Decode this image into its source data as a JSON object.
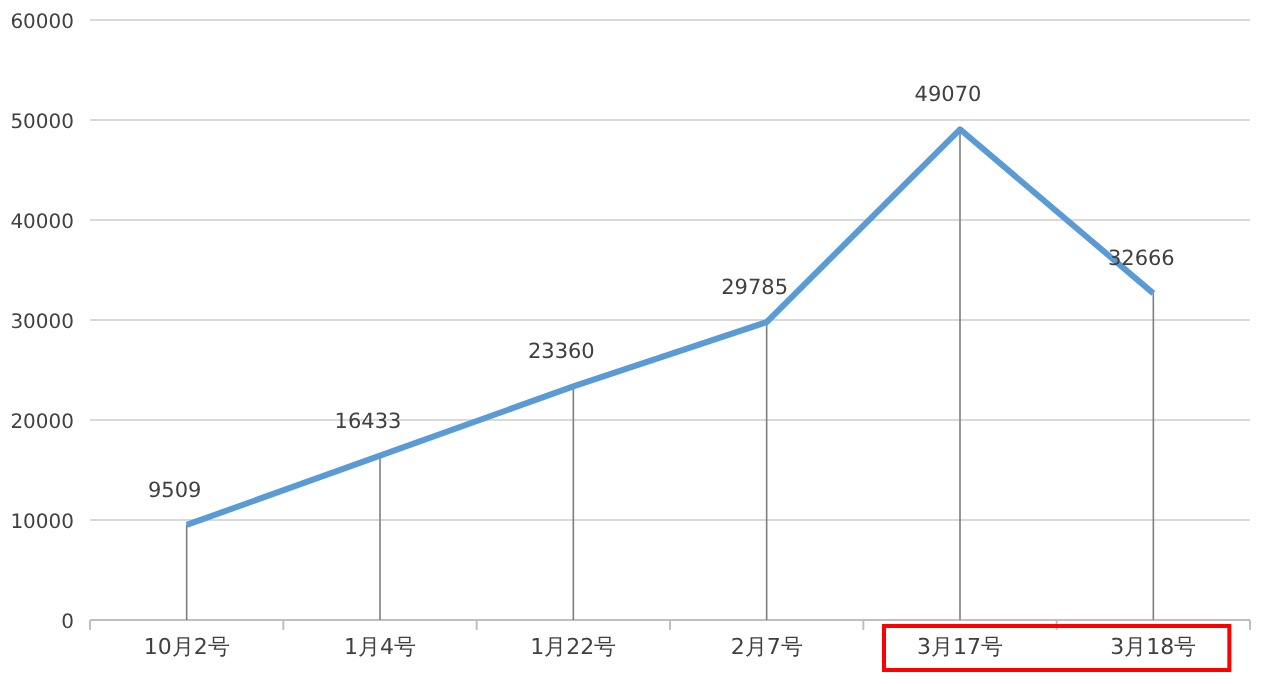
{
  "chart_data": {
    "type": "line",
    "categories": [
      "10月2号",
      "1月4号",
      "1月22号",
      "2月7号",
      "3月17号",
      "3月18号"
    ],
    "values": [
      9509,
      16433,
      23360,
      29785,
      49070,
      32666
    ],
    "color": "#5b9bd5",
    "errors": [
      [
        0,
        9509
      ],
      [
        0,
        16433
      ],
      [
        0,
        23360
      ],
      [
        0,
        29785
      ],
      [
        0,
        49070
      ],
      [
        0,
        32666
      ]
    ],
    "ylim": [
      0,
      60000
    ],
    "yticks": [
      0,
      10000,
      20000,
      30000,
      40000,
      50000,
      60000
    ],
    "grid": "y",
    "data_labels": true,
    "marker": "none",
    "line_style": "solid"
  }
}
